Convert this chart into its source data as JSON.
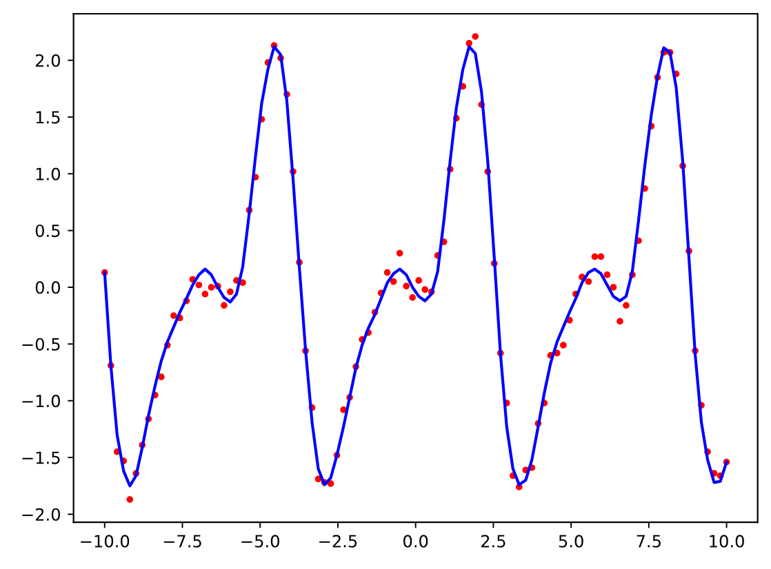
{
  "chart_data": {
    "type": "scatter",
    "x": [
      -10,
      -9.8,
      -9.6,
      -9.39,
      -9.19,
      -8.99,
      -8.79,
      -8.59,
      -8.38,
      -8.18,
      -7.98,
      -7.78,
      -7.58,
      -7.37,
      -7.17,
      -6.97,
      -6.77,
      -6.57,
      -6.36,
      -6.16,
      -5.96,
      -5.76,
      -5.56,
      -5.35,
      -5.15,
      -4.95,
      -4.75,
      -4.55,
      -4.34,
      -4.14,
      -3.94,
      -3.74,
      -3.54,
      -3.33,
      -3.13,
      -2.93,
      -2.73,
      -2.53,
      -2.32,
      -2.12,
      -1.92,
      -1.72,
      -1.52,
      -1.31,
      -1.11,
      -0.91,
      -0.71,
      -0.51,
      -0.3,
      -0.1,
      0.1,
      0.3,
      0.51,
      0.71,
      0.91,
      1.11,
      1.31,
      1.52,
      1.72,
      1.92,
      2.12,
      2.32,
      2.53,
      2.73,
      2.93,
      3.13,
      3.33,
      3.54,
      3.74,
      3.94,
      4.14,
      4.34,
      4.55,
      4.75,
      4.95,
      5.15,
      5.35,
      5.56,
      5.76,
      5.96,
      6.16,
      6.36,
      6.57,
      6.77,
      6.97,
      7.17,
      7.37,
      7.58,
      7.78,
      7.98,
      8.18,
      8.38,
      8.59,
      8.79,
      8.99,
      9.19,
      9.39,
      9.6,
      9.8,
      10
    ],
    "series": [
      {
        "color": "#ff0000",
        "marker": "circle",
        "values": [
          0.13,
          -0.69,
          -1.45,
          -1.53,
          -1.87,
          -1.64,
          -1.39,
          -1.16,
          -0.95,
          -0.79,
          -0.51,
          -0.25,
          -0.27,
          -0.12,
          0.07,
          0.02,
          -0.06,
          0.0,
          0.01,
          -0.16,
          -0.04,
          0.06,
          0.04,
          0.68,
          0.97,
          1.48,
          1.98,
          2.13,
          2.02,
          1.7,
          1.02,
          0.22,
          -0.56,
          -1.06,
          -1.69,
          -1.72,
          -1.73,
          -1.48,
          -1.08,
          -0.97,
          -0.7,
          -0.46,
          -0.4,
          -0.22,
          -0.05,
          0.13,
          0.05,
          0.3,
          0.01,
          -0.09,
          0.06,
          -0.02,
          -0.04,
          0.28,
          0.4,
          1.04,
          1.49,
          1.77,
          2.15,
          2.21,
          1.61,
          1.02,
          0.21,
          -0.58,
          -1.02,
          -1.66,
          -1.76,
          -1.61,
          -1.59,
          -1.2,
          -1.02,
          -0.6,
          -0.58,
          -0.51,
          -0.29,
          -0.06,
          0.09,
          0.05,
          0.27,
          0.27,
          0.11,
          0.0,
          -0.3,
          -0.16,
          0.11,
          0.41,
          0.87,
          1.42,
          1.85,
          2.07,
          2.07,
          1.88,
          1.07,
          0.32,
          -0.56,
          -1.04,
          -1.45,
          -1.64,
          -1.66,
          -1.54
        ]
      },
      {
        "type": "line",
        "color": "#0000ff",
        "line_style": "solid",
        "values": [
          0.13,
          -0.69,
          -1.3,
          -1.62,
          -1.75,
          -1.66,
          -1.41,
          -1.13,
          -0.87,
          -0.65,
          -0.48,
          -0.35,
          -0.22,
          -0.1,
          0.02,
          0.11,
          0.16,
          0.11,
          0.0,
          -0.09,
          -0.13,
          -0.06,
          0.18,
          0.65,
          1.15,
          1.62,
          1.92,
          2.12,
          2.05,
          1.64,
          0.95,
          0.18,
          -0.55,
          -1.19,
          -1.6,
          -1.74,
          -1.68,
          -1.48,
          -1.23,
          -0.97,
          -0.71,
          -0.51,
          -0.36,
          -0.24,
          -0.1,
          0.04,
          0.12,
          0.16,
          0.11,
          0.0,
          -0.08,
          -0.12,
          -0.06,
          0.14,
          0.59,
          1.11,
          1.58,
          1.92,
          2.12,
          2.06,
          1.72,
          1.11,
          0.26,
          -0.59,
          -1.23,
          -1.6,
          -1.74,
          -1.7,
          -1.52,
          -1.23,
          -0.93,
          -0.67,
          -0.48,
          -0.35,
          -0.22,
          -0.1,
          0.04,
          0.13,
          0.16,
          0.12,
          0.02,
          -0.08,
          -0.12,
          -0.08,
          0.14,
          0.59,
          1.07,
          1.52,
          1.86,
          2.11,
          2.07,
          1.76,
          1.11,
          0.26,
          -0.59,
          -1.19,
          -1.52,
          -1.72,
          -1.71,
          -1.54
        ]
      }
    ],
    "xlim": [
      -11,
      11
    ],
    "ylim": [
      -2.07,
      2.41
    ],
    "xticks": [
      {
        "value": -10,
        "label": "−10.0"
      },
      {
        "value": -7.5,
        "label": "−7.5"
      },
      {
        "value": -5,
        "label": "−5.0"
      },
      {
        "value": -2.5,
        "label": "−2.5"
      },
      {
        "value": 0,
        "label": "0.0"
      },
      {
        "value": 2.5,
        "label": "2.5"
      },
      {
        "value": 5,
        "label": "5.0"
      },
      {
        "value": 7.5,
        "label": "7.5"
      },
      {
        "value": 10,
        "label": "10.0"
      }
    ],
    "yticks": [
      {
        "value": -2,
        "label": "−2.0"
      },
      {
        "value": -1.5,
        "label": "−1.5"
      },
      {
        "value": -1,
        "label": "−1.0"
      },
      {
        "value": -0.5,
        "label": "−0.5"
      },
      {
        "value": 0,
        "label": "0.0"
      },
      {
        "value": 0.5,
        "label": "0.5"
      },
      {
        "value": 1,
        "label": "1.0"
      },
      {
        "value": 1.5,
        "label": "1.5"
      },
      {
        "value": 2,
        "label": "2.0"
      }
    ]
  }
}
